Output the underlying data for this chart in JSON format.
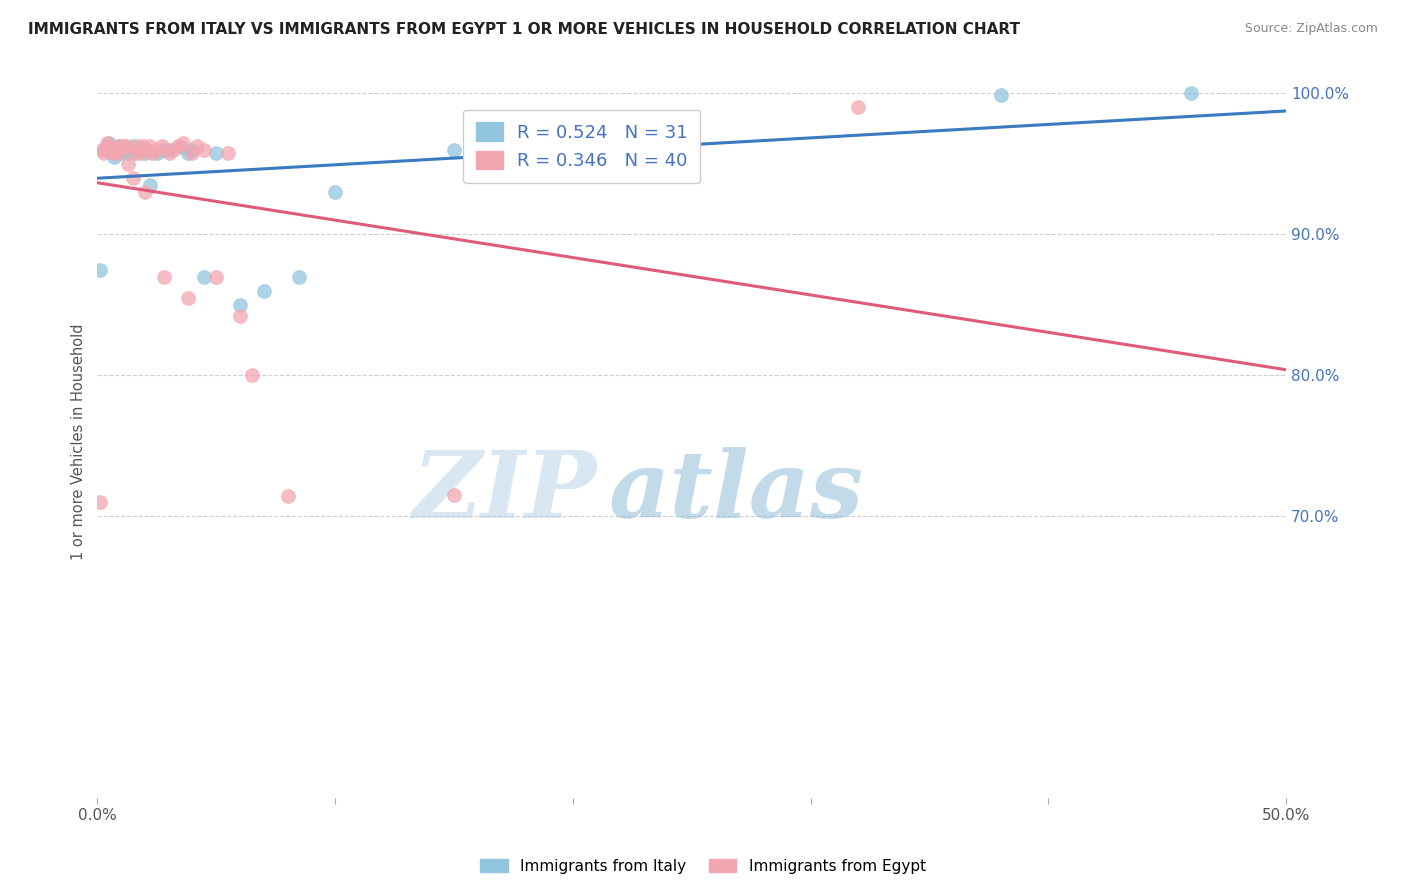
{
  "title": "IMMIGRANTS FROM ITALY VS IMMIGRANTS FROM EGYPT 1 OR MORE VEHICLES IN HOUSEHOLD CORRELATION CHART",
  "source": "Source: ZipAtlas.com",
  "ylabel": "1 or more Vehicles in Household",
  "xlim": [
    0.0,
    0.5
  ],
  "ylim": [
    0.5,
    1.005
  ],
  "ytick_right_labels": [
    "100.0%",
    "90.0%",
    "80.0%",
    "70.0%"
  ],
  "ytick_right_positions": [
    1.0,
    0.9,
    0.8,
    0.7
  ],
  "italy_color": "#92c5de",
  "egypt_color": "#f4a6b0",
  "italy_line_color": "#3a7abf",
  "egypt_line_color": "#e05a7a",
  "italy_R": 0.524,
  "italy_N": 31,
  "egypt_R": 0.346,
  "egypt_N": 40,
  "background_color": "#ffffff",
  "watermark_zip": "ZIP",
  "watermark_atlas": "atlas",
  "italy_x": [
    0.001,
    0.003,
    0.005,
    0.006,
    0.007,
    0.008,
    0.009,
    0.01,
    0.011,
    0.012,
    0.013,
    0.015,
    0.016,
    0.018,
    0.02,
    0.022,
    0.025,
    0.028,
    0.03,
    0.035,
    0.038,
    0.04,
    0.045,
    0.05,
    0.06,
    0.07,
    0.085,
    0.1,
    0.15,
    0.38,
    0.46
  ],
  "italy_y": [
    0.875,
    0.96,
    0.965,
    0.958,
    0.955,
    0.96,
    0.963,
    0.958,
    0.96,
    0.962,
    0.958,
    0.963,
    0.958,
    0.96,
    0.958,
    0.935,
    0.958,
    0.96,
    0.96,
    0.962,
    0.958,
    0.96,
    0.87,
    0.958,
    0.85,
    0.86,
    0.87,
    0.93,
    0.96,
    0.999,
    1.0
  ],
  "egypt_x": [
    0.001,
    0.002,
    0.003,
    0.004,
    0.005,
    0.006,
    0.007,
    0.008,
    0.009,
    0.01,
    0.011,
    0.012,
    0.013,
    0.015,
    0.016,
    0.017,
    0.018,
    0.019,
    0.02,
    0.021,
    0.022,
    0.023,
    0.025,
    0.027,
    0.028,
    0.03,
    0.032,
    0.034,
    0.036,
    0.038,
    0.04,
    0.042,
    0.045,
    0.05,
    0.055,
    0.06,
    0.065,
    0.08,
    0.15,
    0.32
  ],
  "egypt_y": [
    0.71,
    0.96,
    0.958,
    0.965,
    0.963,
    0.96,
    0.958,
    0.958,
    0.963,
    0.96,
    0.963,
    0.963,
    0.95,
    0.94,
    0.958,
    0.963,
    0.958,
    0.963,
    0.93,
    0.96,
    0.963,
    0.958,
    0.96,
    0.963,
    0.87,
    0.958,
    0.96,
    0.963,
    0.965,
    0.855,
    0.958,
    0.963,
    0.96,
    0.87,
    0.958,
    0.842,
    0.8,
    0.714,
    0.715,
    0.99
  ]
}
